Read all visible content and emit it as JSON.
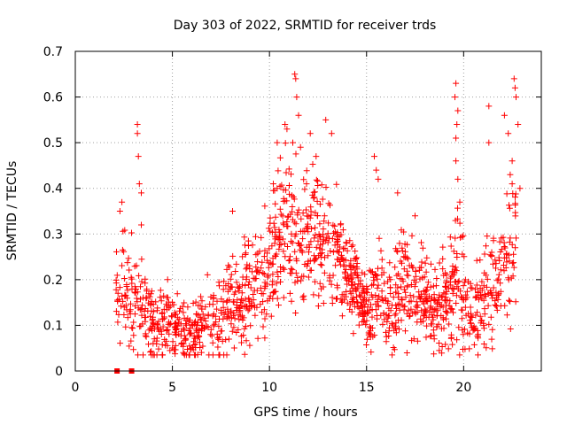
{
  "chart_data": {
    "type": "scatter",
    "title": "Day 303 of 2022, SRMTID for receiver trds",
    "xlabel": "GPS time / hours",
    "ylabel": "SRMTID / TECUs",
    "xlim": [
      0,
      24
    ],
    "ylim": [
      0,
      0.7
    ],
    "xticks": [
      0,
      5,
      10,
      15,
      20
    ],
    "yticks": [
      0,
      0.1,
      0.2,
      0.3,
      0.4,
      0.5,
      0.6,
      0.7
    ],
    "xtick_labels": [
      "0",
      "5",
      "10",
      "15",
      "20"
    ],
    "ytick_labels": [
      "0",
      "0.1",
      "0.2",
      "0.3",
      "0.4",
      "0.5",
      "0.6",
      "0.7"
    ],
    "grid": true,
    "marker": "plus",
    "color": "#ff0000",
    "profile": [
      {
        "t": 2.1,
        "base": 0.16,
        "spread": 0.09
      },
      {
        "t": 2.6,
        "base": 0.19,
        "spread": 0.1
      },
      {
        "t": 3.2,
        "base": 0.15,
        "spread": 0.12
      },
      {
        "t": 3.8,
        "base": 0.1,
        "spread": 0.07
      },
      {
        "t": 4.5,
        "base": 0.1,
        "spread": 0.07
      },
      {
        "t": 5.2,
        "base": 0.1,
        "spread": 0.06
      },
      {
        "t": 6.0,
        "base": 0.08,
        "spread": 0.05
      },
      {
        "t": 6.8,
        "base": 0.11,
        "spread": 0.06
      },
      {
        "t": 7.5,
        "base": 0.12,
        "spread": 0.07
      },
      {
        "t": 8.2,
        "base": 0.15,
        "spread": 0.08
      },
      {
        "t": 9.0,
        "base": 0.18,
        "spread": 0.08
      },
      {
        "t": 9.6,
        "base": 0.2,
        "spread": 0.09
      },
      {
        "t": 10.2,
        "base": 0.28,
        "spread": 0.12
      },
      {
        "t": 10.8,
        "base": 0.32,
        "spread": 0.14
      },
      {
        "t": 11.4,
        "base": 0.3,
        "spread": 0.13
      },
      {
        "t": 12.0,
        "base": 0.3,
        "spread": 0.12
      },
      {
        "t": 12.8,
        "base": 0.28,
        "spread": 0.1
      },
      {
        "t": 13.6,
        "base": 0.25,
        "spread": 0.09
      },
      {
        "t": 14.3,
        "base": 0.2,
        "spread": 0.08
      },
      {
        "t": 15.0,
        "base": 0.12,
        "spread": 0.06
      },
      {
        "t": 15.6,
        "base": 0.18,
        "spread": 0.09
      },
      {
        "t": 16.2,
        "base": 0.13,
        "spread": 0.07
      },
      {
        "t": 17.0,
        "base": 0.2,
        "spread": 0.1
      },
      {
        "t": 17.8,
        "base": 0.17,
        "spread": 0.08
      },
      {
        "t": 18.5,
        "base": 0.13,
        "spread": 0.07
      },
      {
        "t": 19.2,
        "base": 0.17,
        "spread": 0.09
      },
      {
        "t": 19.7,
        "base": 0.22,
        "spread": 0.12
      },
      {
        "t": 20.3,
        "base": 0.12,
        "spread": 0.06
      },
      {
        "t": 21.0,
        "base": 0.15,
        "spread": 0.08
      },
      {
        "t": 21.7,
        "base": 0.2,
        "spread": 0.1
      },
      {
        "t": 22.2,
        "base": 0.25,
        "spread": 0.12
      },
      {
        "t": 22.7,
        "base": 0.28,
        "spread": 0.14
      }
    ],
    "peaks": [
      [
        2.3,
        0.35
      ],
      [
        2.4,
        0.37
      ],
      [
        3.2,
        0.54
      ],
      [
        3.2,
        0.52
      ],
      [
        3.25,
        0.47
      ],
      [
        3.3,
        0.41
      ],
      [
        3.4,
        0.39
      ],
      [
        3.4,
        0.32
      ],
      [
        8.1,
        0.35
      ],
      [
        10.2,
        0.41
      ],
      [
        10.4,
        0.5
      ],
      [
        10.8,
        0.54
      ],
      [
        10.9,
        0.53
      ],
      [
        11.3,
        0.65
      ],
      [
        11.35,
        0.64
      ],
      [
        11.4,
        0.6
      ],
      [
        11.5,
        0.56
      ],
      [
        11.2,
        0.5
      ],
      [
        11.6,
        0.49
      ],
      [
        12.1,
        0.52
      ],
      [
        12.4,
        0.47
      ],
      [
        12.9,
        0.55
      ],
      [
        13.2,
        0.52
      ],
      [
        15.4,
        0.47
      ],
      [
        15.5,
        0.44
      ],
      [
        15.6,
        0.42
      ],
      [
        16.6,
        0.39
      ],
      [
        17.5,
        0.34
      ],
      [
        19.6,
        0.63
      ],
      [
        19.55,
        0.6
      ],
      [
        19.7,
        0.57
      ],
      [
        19.65,
        0.54
      ],
      [
        19.6,
        0.51
      ],
      [
        19.6,
        0.46
      ],
      [
        19.7,
        0.42
      ],
      [
        19.8,
        0.37
      ],
      [
        21.3,
        0.58
      ],
      [
        21.3,
        0.5
      ],
      [
        22.1,
        0.56
      ],
      [
        22.3,
        0.52
      ],
      [
        22.5,
        0.46
      ],
      [
        22.6,
        0.64
      ],
      [
        22.65,
        0.62
      ],
      [
        22.7,
        0.6
      ],
      [
        22.8,
        0.54
      ],
      [
        22.5,
        0.41
      ],
      [
        22.9,
        0.4
      ],
      [
        22.4,
        0.43
      ]
    ],
    "zero_points": [
      [
        2.15,
        0.0
      ],
      [
        2.9,
        0.0
      ]
    ]
  }
}
